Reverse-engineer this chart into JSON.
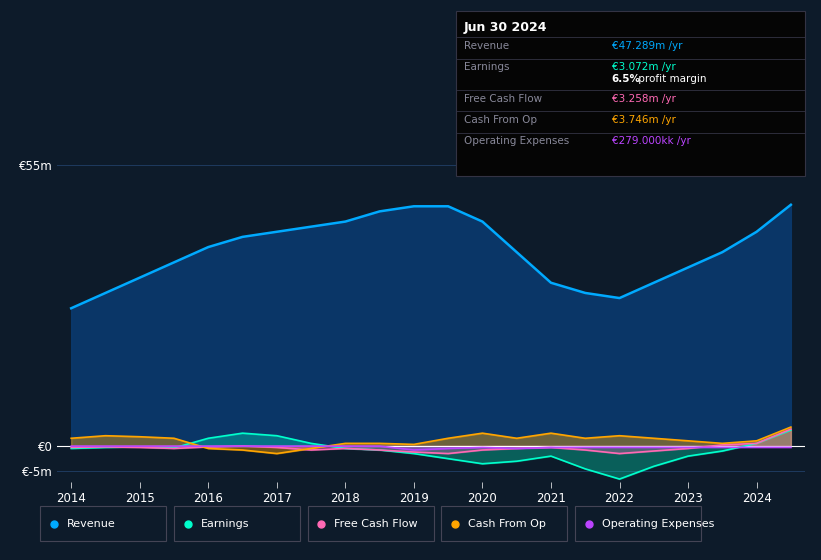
{
  "background_color": "#0d1b2a",
  "plot_bg_color": "#0d1b2a",
  "years": [
    2014,
    2014.5,
    2015,
    2015.5,
    2016,
    2016.5,
    2017,
    2017.5,
    2018,
    2018.5,
    2019,
    2019.5,
    2020,
    2020.5,
    2021,
    2021.5,
    2022,
    2022.5,
    2023,
    2023.5,
    2024,
    2024.5
  ],
  "revenue": [
    27,
    30,
    33,
    36,
    39,
    41,
    42,
    43,
    44,
    46,
    47,
    47,
    44,
    38,
    32,
    30,
    29,
    32,
    35,
    38,
    42,
    47.3
  ],
  "earnings": [
    -0.5,
    -0.3,
    -0.2,
    -0.4,
    1.5,
    2.5,
    2.0,
    0.5,
    -0.5,
    -0.8,
    -1.5,
    -2.5,
    -3.5,
    -3.0,
    -2.0,
    -4.5,
    -6.5,
    -4.0,
    -2.0,
    -1.0,
    0.5,
    3.1
  ],
  "free_cash_flow": [
    -0.3,
    -0.2,
    -0.3,
    -0.5,
    -0.2,
    0.0,
    -0.3,
    -0.8,
    -0.5,
    -0.8,
    -1.2,
    -1.5,
    -0.8,
    -0.5,
    -0.3,
    -0.8,
    -1.5,
    -1.0,
    -0.5,
    0.2,
    0.5,
    3.3
  ],
  "cash_from_op": [
    1.5,
    2.0,
    1.8,
    1.5,
    -0.5,
    -0.8,
    -1.5,
    -0.5,
    0.5,
    0.5,
    0.3,
    1.5,
    2.5,
    1.5,
    2.5,
    1.5,
    2.0,
    1.5,
    1.0,
    0.5,
    1.0,
    3.7
  ],
  "operating_expenses": [
    -0.05,
    -0.05,
    -0.05,
    -0.05,
    -0.05,
    -0.05,
    -0.05,
    -0.05,
    -0.05,
    -0.05,
    -0.8,
    -0.5,
    -0.3,
    -0.5,
    -0.3,
    -0.28,
    -0.28,
    -0.28,
    -0.28,
    -0.28,
    -0.28,
    -0.28
  ],
  "revenue_color": "#00aaff",
  "earnings_color": "#00ffcc",
  "free_cash_flow_color": "#ff69b4",
  "cash_from_op_color": "#ffa500",
  "operating_expenses_color": "#bb44ff",
  "revenue_fill": "#0a3a6e",
  "ylim_top": 60,
  "ylim_bottom": -7,
  "grid_color": "#1e3a5f",
  "xtick_labels": [
    "2014",
    "2015",
    "2016",
    "2017",
    "2018",
    "2019",
    "2020",
    "2021",
    "2022",
    "2023",
    "2024"
  ],
  "xtick_positions": [
    2014,
    2015,
    2016,
    2017,
    2018,
    2019,
    2020,
    2021,
    2022,
    2023,
    2024
  ],
  "info_box": {
    "title": "Jun 30 2024",
    "revenue_label": "Revenue",
    "revenue_value": "€47.289m",
    "earnings_label": "Earnings",
    "earnings_value": "€3.072m",
    "margin_value": "6.5%",
    "margin_text": " profit margin",
    "fcf_label": "Free Cash Flow",
    "fcf_value": "€3.258m",
    "cashop_label": "Cash From Op",
    "cashop_value": "€3.746m",
    "opex_label": "Operating Expenses",
    "opex_value": "€279.000k"
  }
}
